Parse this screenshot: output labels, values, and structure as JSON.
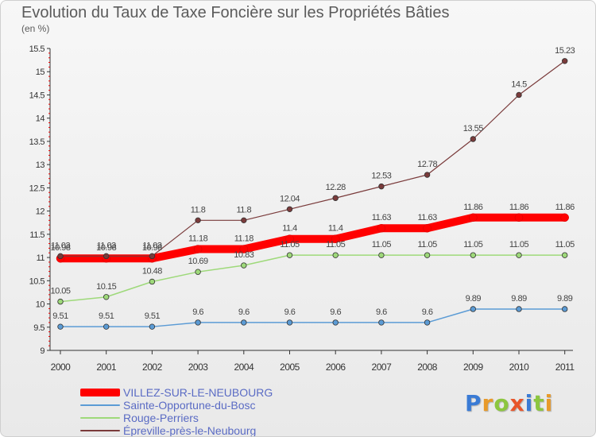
{
  "title": "Evolution du Taux de Taxe Foncière sur les Propriétés Bâties",
  "subtitle": "(en %)",
  "logo": {
    "text": "Proxiti"
  },
  "chart_data": {
    "type": "line",
    "title": "Evolution du Taux de Taxe Foncière sur les Propriétés Bâties",
    "ylabel": "(en %)",
    "x": [
      "2000",
      "2001",
      "2002",
      "2003",
      "2004",
      "2005",
      "2006",
      "2007",
      "2008",
      "2009",
      "2010",
      "2011"
    ],
    "ylim": [
      9,
      15.5
    ],
    "yticks": [
      "9",
      "9.5",
      "10",
      "10.5",
      "11",
      "11.5",
      "12",
      "12.5",
      "13",
      "13.5",
      "14",
      "14.5",
      "15",
      "15.5"
    ],
    "grid": false,
    "legend_position": "bottom-left",
    "series": [
      {
        "name": "VILLEZ-SUR-LE-NEUBOURG",
        "color": "#ff0000",
        "values": [
          10.98,
          10.98,
          10.98,
          11.18,
          11.18,
          11.4,
          11.4,
          11.63,
          11.63,
          11.86,
          11.86,
          11.86
        ],
        "labels": [
          "10.98",
          "10.98",
          "10.98",
          "11.18",
          "11.18",
          "11.4",
          "11.4",
          "11.63",
          "11.63",
          "11.86",
          "11.86",
          "11.86"
        ]
      },
      {
        "name": "Sainte-Opportune-du-Bosc",
        "color": "#5b9bd5",
        "values": [
          9.51,
          9.51,
          9.51,
          9.6,
          9.6,
          9.6,
          9.6,
          9.6,
          9.6,
          9.89,
          9.89,
          9.89
        ],
        "labels": [
          "9.51",
          "9.51",
          "9.51",
          "9.6",
          "9.6",
          "9.6",
          "9.6",
          "9.6",
          "9.6",
          "9.89",
          "9.89",
          "9.89"
        ]
      },
      {
        "name": "Rouge-Perriers",
        "color": "#9ed97a",
        "values": [
          10.05,
          10.15,
          10.48,
          10.69,
          10.83,
          11.05,
          11.05,
          11.05,
          11.05,
          11.05,
          11.05,
          11.05
        ],
        "labels": [
          "10.05",
          "10.15",
          "10.48",
          "10.69",
          "10.83",
          "11.05",
          "11.05",
          "11.05",
          "11.05",
          "11.05",
          "11.05",
          "11.05"
        ]
      },
      {
        "name": "Épreville-près-le-Neubourg",
        "color": "#7a3b3b",
        "values": [
          11.03,
          11.03,
          11.03,
          11.8,
          11.8,
          12.04,
          12.28,
          12.53,
          12.78,
          13.55,
          14.5,
          15.23
        ],
        "labels": [
          "11.03",
          "11.03",
          "11.03",
          "11.8",
          "11.8",
          "12.04",
          "12.28",
          "12.53",
          "12.78",
          "13.55",
          "14.5",
          "15.23"
        ]
      }
    ]
  }
}
